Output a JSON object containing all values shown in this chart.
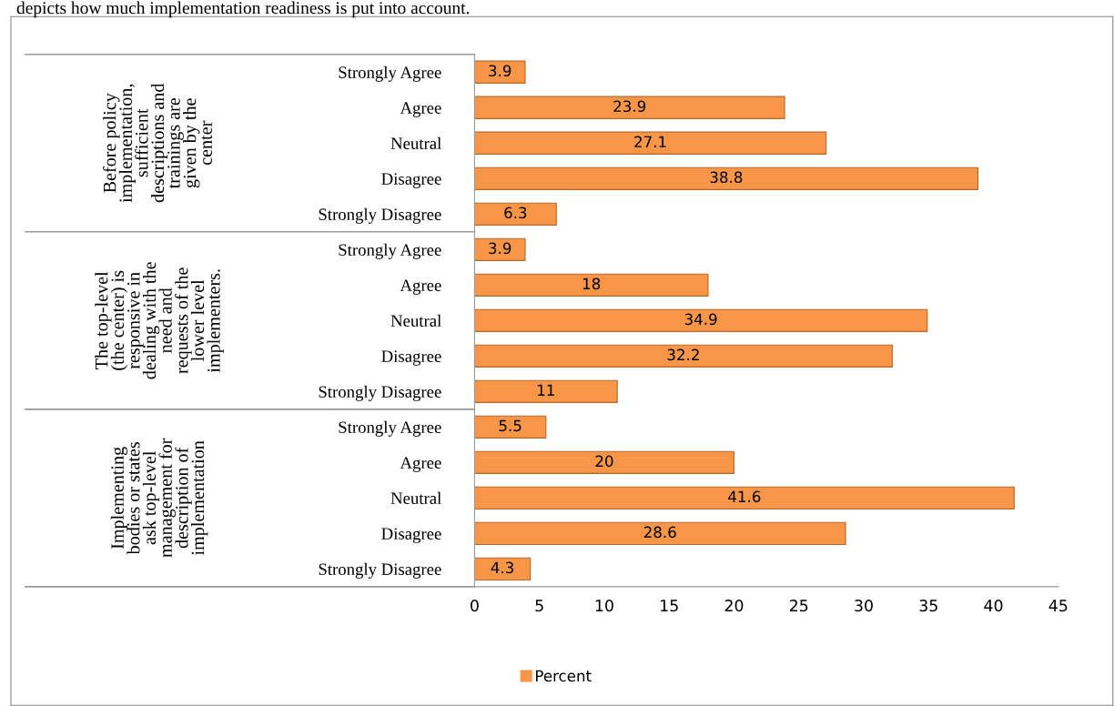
{
  "chart_data": {
    "type": "bar",
    "orientation": "horizontal",
    "categories": [
      "Strongly Agree",
      "Agree",
      "Neutral",
      "Disagree",
      "Strongly Disagree",
      "Strongly Agree",
      "Agree",
      "Neutral",
      "Disagree",
      "Strongly Disagree",
      "Strongly Agree",
      "Agree",
      "Neutral",
      "Disagree",
      "Strongly Disagree"
    ],
    "series": [
      {
        "name": "Percent",
        "color": "#f79646",
        "values": [
          3.9,
          23.9,
          27.1,
          38.8,
          6.3,
          3.9,
          18,
          34.9,
          32.2,
          11,
          5.5,
          20,
          41.6,
          28.6,
          4.3
        ]
      }
    ],
    "xlim": [
      0,
      45
    ],
    "xticks": [
      0,
      5,
      10,
      15,
      20,
      25,
      30,
      35,
      40,
      45
    ],
    "data_labels": true,
    "grid": false,
    "legend": "bottom",
    "annotations": [
      "depicts how much implementation readiness is put into account.",
      "Before policy\nimplementation,\nsufficient\ndescriptions and\ntrainings are\ngiven by the\ncenter",
      "The top-level\n(the center) is\nresponsive in\ndealing with the\nneed and\nrequests of the\nlower level\nimplementers.",
      "Implementing\nbodies or states\nask top-level\nmanagement for\ndescription of\nimplementation"
    ]
  }
}
